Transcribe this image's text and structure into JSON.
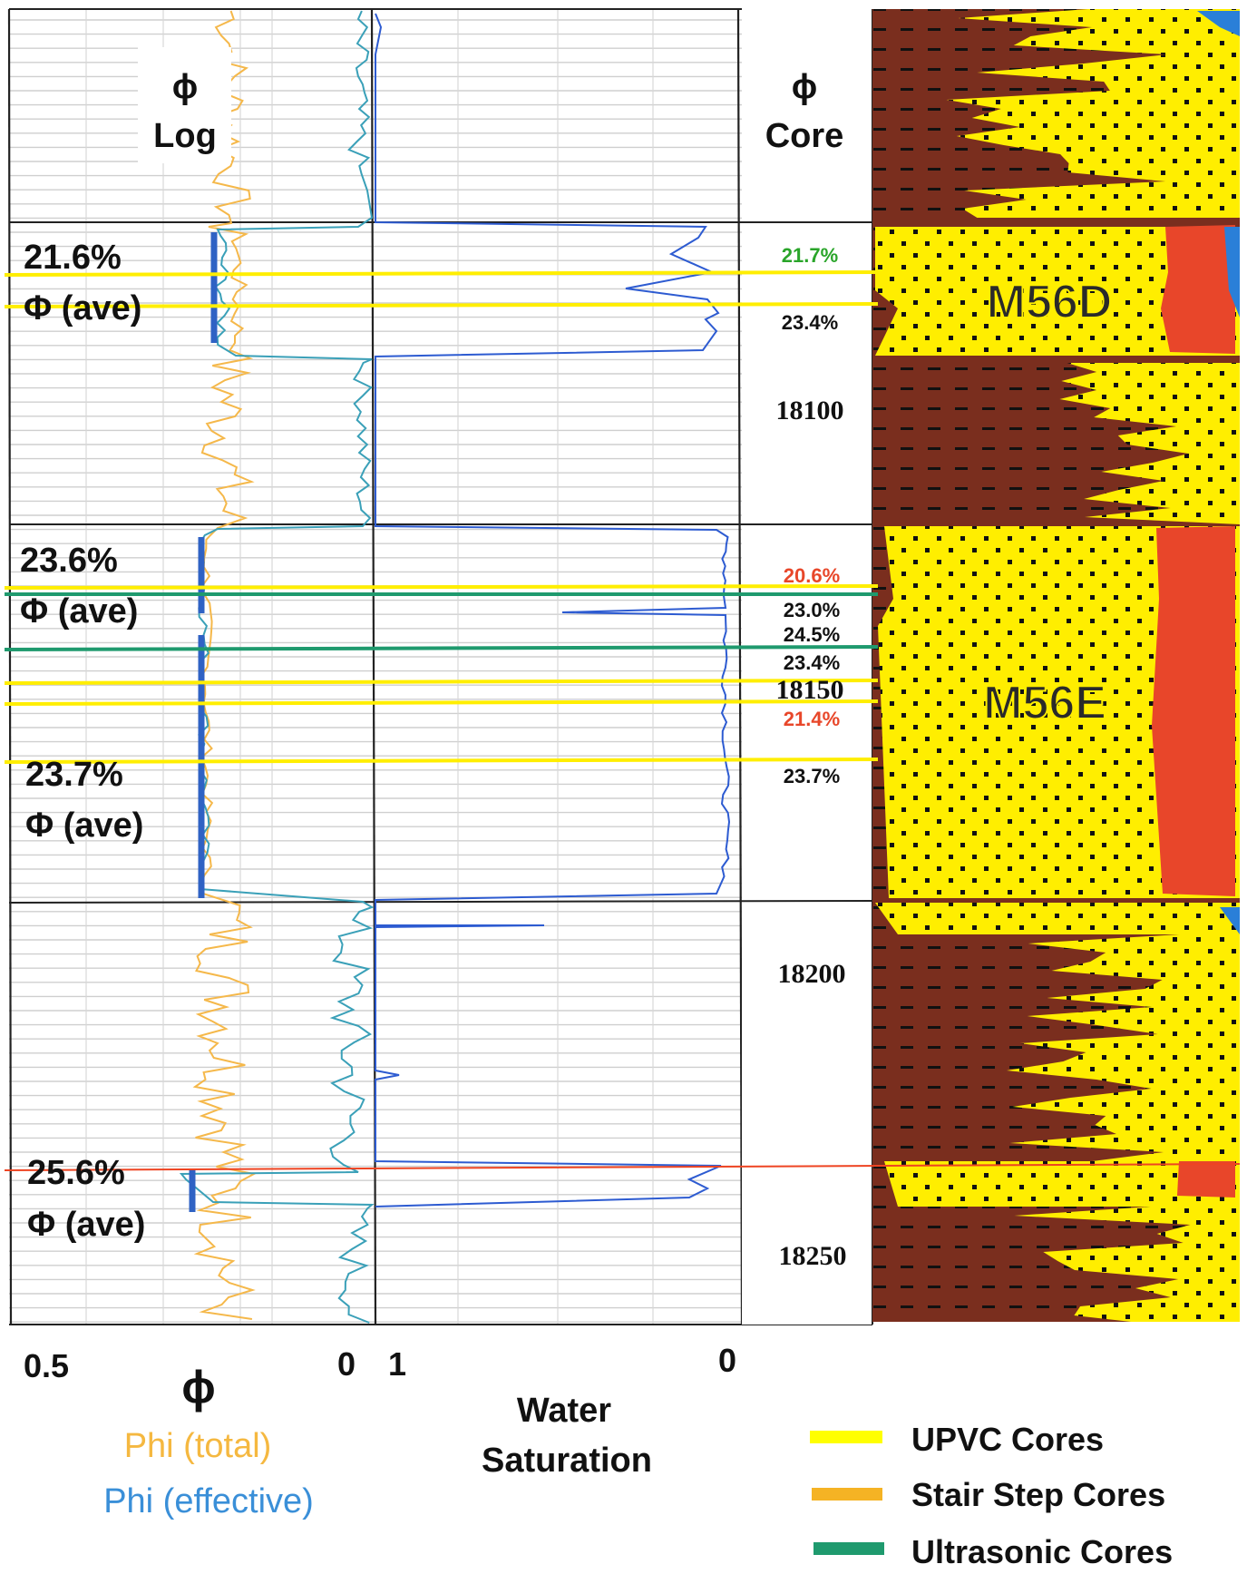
{
  "track_headers": {
    "log_symbol": "ϕ",
    "log_label": "Log",
    "core_symbol": "ϕ",
    "core_label": "Core"
  },
  "zones": [
    {
      "name": "M56D"
    },
    {
      "name": "M56E"
    }
  ],
  "average_porosity": [
    {
      "value": "21.6%",
      "label": "Φ (ave)"
    },
    {
      "value": "23.6%",
      "label": "Φ (ave)"
    },
    {
      "value": "23.7%",
      "label": "Φ (ave)"
    },
    {
      "value": "25.6%",
      "label": "Φ (ave)"
    }
  ],
  "core_values": [
    {
      "text": "21.7%",
      "color": "#2aa52a"
    },
    {
      "text": "23.4%",
      "color": "#111111"
    },
    {
      "text": "20.6%",
      "color": "#e8472a"
    },
    {
      "text": "23.0%",
      "color": "#111111"
    },
    {
      "text": "24.5%",
      "color": "#111111"
    },
    {
      "text": "23.4%",
      "color": "#111111"
    },
    {
      "text": "21.4%",
      "color": "#e8472a"
    },
    {
      "text": "23.7%",
      "color": "#111111"
    }
  ],
  "depths": [
    "18100",
    "18150",
    "18200",
    "18250"
  ],
  "axes": {
    "phi_left": "0.5",
    "phi_right": "0",
    "phi_symbol": "ϕ",
    "phi_total_label": "Phi (total)",
    "phi_effective_label": "Phi (effective)",
    "sw_left": "1",
    "sw_right": "0",
    "sw_label_line1": "Water",
    "sw_label_line2": "Saturation"
  },
  "legend": [
    {
      "label": "UPVC Cores",
      "color": "#ffff00"
    },
    {
      "label": "Stair Step Cores",
      "color": "#f5b324"
    },
    {
      "label": "Ultrasonic Cores",
      "color": "#1f9a6e"
    }
  ],
  "colors": {
    "phi_total": "#f5b84a",
    "phi_effective": "#3aa0b8",
    "water_saturation": "#2d5bd1",
    "ave_bar": "#2f62c4",
    "sand": "#ffee00",
    "shale": "#7a2e1e",
    "oil": "#e8462a",
    "gas": "#2a7fd8",
    "red_marker": "#ee4422",
    "phi_total_text": "#f5b840",
    "phi_eff_text": "#3a8fd8"
  }
}
